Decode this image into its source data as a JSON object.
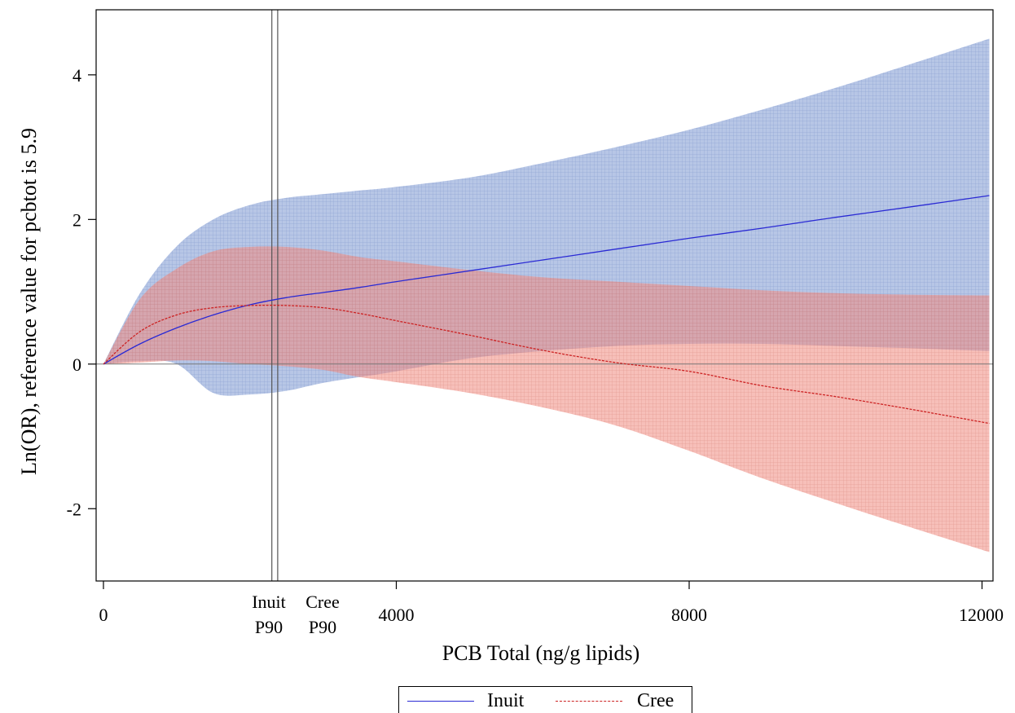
{
  "chart_data": {
    "type": "line",
    "xlabel": "PCB Total (ng/g lipids)",
    "ylabel": "Ln(OR), reference value for pcbtot is 5.9",
    "xlim": [
      -100,
      12150
    ],
    "ylim": [
      -3,
      4.9
    ],
    "x_ticks": [
      {
        "value": 0,
        "label": "0"
      },
      {
        "value": 4000,
        "label": "4000"
      },
      {
        "value": 8000,
        "label": "8000"
      },
      {
        "value": 12000,
        "label": "12000"
      }
    ],
    "y_ticks": [
      {
        "value": -2,
        "label": "-2"
      },
      {
        "value": 0,
        "label": "0"
      },
      {
        "value": 2,
        "label": "2"
      },
      {
        "value": 4,
        "label": "4"
      }
    ],
    "reference_lines": [
      {
        "x": 2300,
        "label_top": "Inuit",
        "label_bottom": "P90"
      },
      {
        "x": 2380,
        "label_top": "Cree",
        "label_bottom": "P90"
      }
    ],
    "horizontal_reference": 0,
    "grid": false,
    "legend_position": "bottom",
    "x": [
      0,
      500,
      1000,
      1500,
      2000,
      2500,
      3000,
      3500,
      4000,
      5000,
      6000,
      7000,
      8000,
      9000,
      10000,
      11000,
      12100
    ],
    "series": [
      {
        "name": "Inuit",
        "color": "#2a2ad4",
        "line_style": "solid",
        "band_color": "#8aa3d6",
        "values": [
          0,
          0.28,
          0.5,
          0.68,
          0.82,
          0.92,
          0.99,
          1.06,
          1.14,
          1.29,
          1.44,
          1.59,
          1.74,
          1.88,
          2.03,
          2.17,
          2.33
        ],
        "upper": [
          0,
          0.98,
          1.63,
          2.0,
          2.2,
          2.3,
          2.35,
          2.4,
          2.45,
          2.58,
          2.78,
          3.0,
          3.24,
          3.52,
          3.82,
          4.14,
          4.5
        ],
        "lower": [
          0,
          0.04,
          0.0,
          -0.4,
          -0.42,
          -0.37,
          -0.26,
          -0.18,
          -0.1,
          0.08,
          0.18,
          0.25,
          0.28,
          0.28,
          0.25,
          0.22,
          0.18
        ]
      },
      {
        "name": "Cree",
        "color": "#cc2222",
        "line_style": "dashed",
        "band_color": "#f08a80",
        "values": [
          0,
          0.45,
          0.68,
          0.78,
          0.81,
          0.81,
          0.78,
          0.7,
          0.6,
          0.4,
          0.19,
          0.02,
          -0.1,
          -0.3,
          -0.45,
          -0.62,
          -0.82
        ],
        "upper": [
          0,
          0.9,
          1.32,
          1.56,
          1.62,
          1.62,
          1.57,
          1.48,
          1.42,
          1.3,
          1.2,
          1.14,
          1.08,
          1.02,
          0.98,
          0.96,
          0.95
        ],
        "lower": [
          0,
          0.02,
          0.05,
          0.04,
          0.0,
          -0.03,
          -0.08,
          -0.18,
          -0.25,
          -0.4,
          -0.6,
          -0.85,
          -1.2,
          -1.58,
          -1.92,
          -2.25,
          -2.6
        ]
      }
    ]
  }
}
